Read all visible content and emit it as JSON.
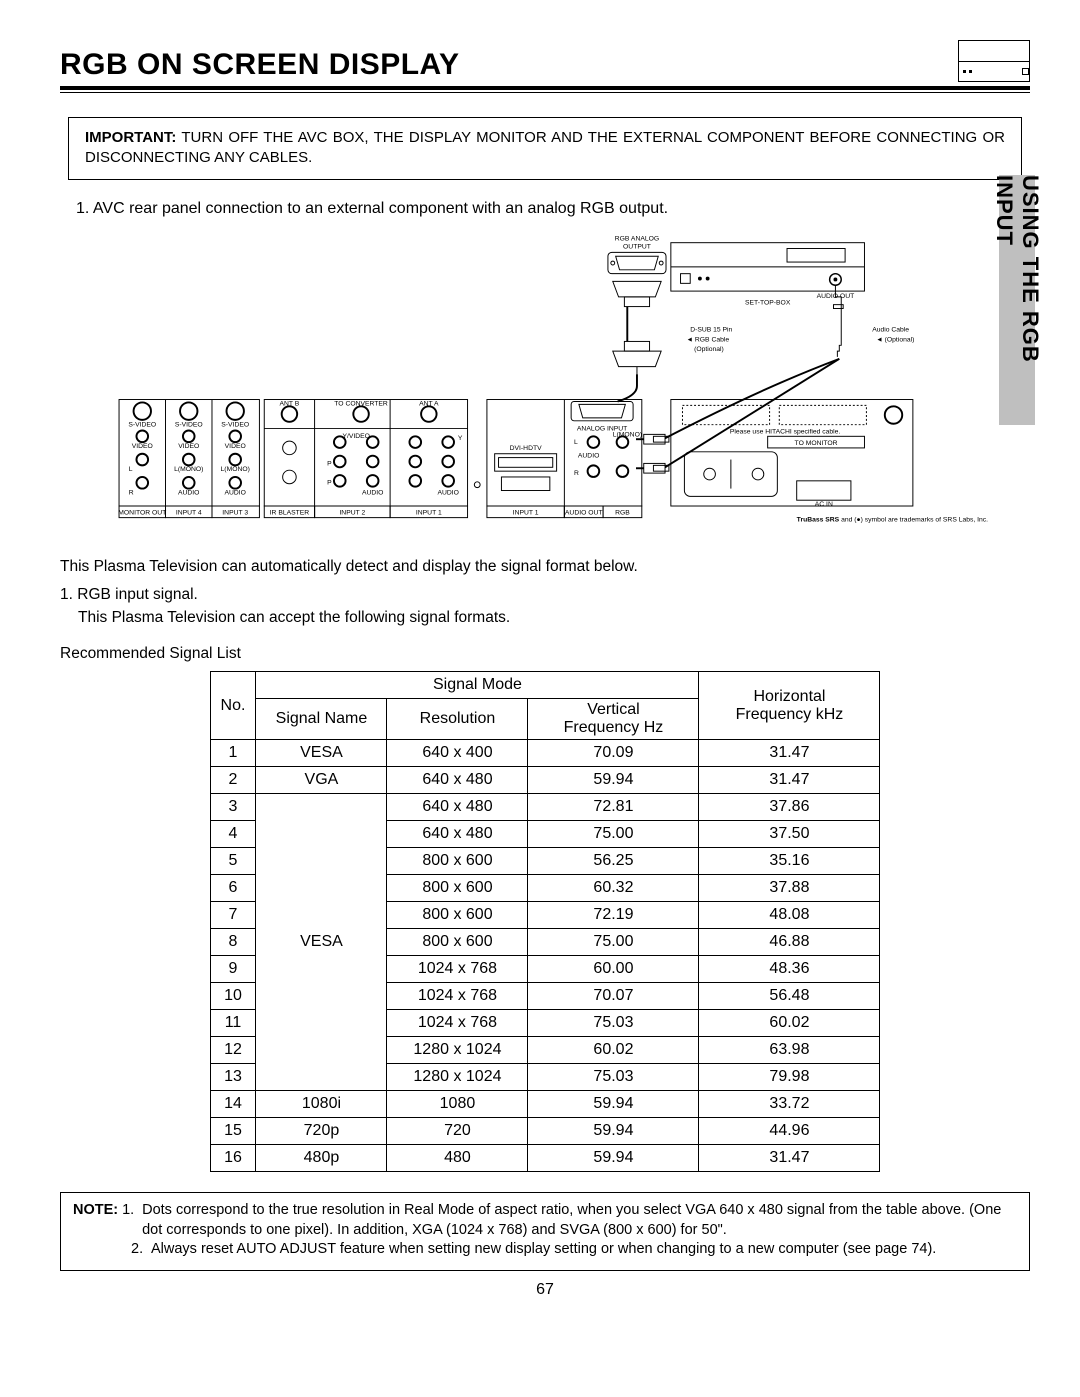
{
  "header": {
    "title": "RGB ON SCREEN DISPLAY"
  },
  "side_tab": {
    "label": "USING THE RGB INPUT",
    "bg_color": "#bfbfbf"
  },
  "important_box": {
    "label": "IMPORTANT:",
    "text": " TURN OFF THE AVC BOX, THE DISPLAY MONITOR AND THE EXTERNAL COMPONENT BEFORE CONNECTING OR DISCONNECTING ANY CABLES."
  },
  "intro_line": {
    "num": "1.",
    "text": "AVC rear panel connection to an external component with an analog RGB output."
  },
  "diagram": {
    "labels": {
      "rgb_analog_output": "RGB ANALOG\nOUTPUT",
      "set_top_box": "SET-TOP-BOX",
      "audio_out": "AUDIO OUT",
      "dsub": "D-SUB 15 Pin",
      "rgb_cable": "RGB Cable",
      "optional": "(Optional)",
      "audio_cable": "Audio Cable",
      "audio_optional": "(Optional)",
      "to_monitor": "TO MONITOR",
      "please_use": "Please use HITACHI specified cable.",
      "ac_in": "AC IN",
      "trubass": "TruBass SRS and (●) symbol are trademarks of SRS Labs, Inc.",
      "analog_input": "ANALOG INPUT",
      "dvi_hdtv": "DVI-HDTV",
      "audio": "AUDIO",
      "l": "L",
      "r": "R",
      "lmono": "L(MONO)",
      "ant_a": "ANT A",
      "ant_b": "ANT B",
      "to_converter": "TO CONVERTER",
      "monitor_out": "MONITOR OUT",
      "input4": "INPUT 4",
      "input3": "INPUT 3",
      "input2": "INPUT 2",
      "input1": "INPUT 1",
      "ir_blaster": "IR BLASTER",
      "audio_out2": "AUDIO OUT",
      "rgb": "RGB",
      "svideo": "S-VIDEO",
      "video": "VIDEO",
      "y": "Y",
      "yvideo": "Y/VIDEO",
      "pb": "PB",
      "pr": "PR"
    }
  },
  "after_diagram": {
    "p1": "This Plasma Television can automatically detect and display the signal format below.",
    "p2_num": "1.",
    "p2a": "RGB input signal.",
    "p2b": "This Plasma Television can accept the following signal formats."
  },
  "table": {
    "caption": "Recommended Signal List",
    "headers": {
      "no": "No.",
      "signal_mode": "Signal Mode",
      "signal_name": "Signal Name",
      "resolution": "Resolution",
      "vfreq": "Vertical\nFrequency Hz",
      "hfreq": "Horizontal\nFrequency kHz"
    },
    "rows": [
      {
        "no": "1",
        "name": "VESA",
        "res": "640 x 400",
        "v": "70.09",
        "h": "31.47"
      },
      {
        "no": "2",
        "name": "VGA",
        "res": "640 x 480",
        "v": "59.94",
        "h": "31.47"
      },
      {
        "no": "3",
        "name": "",
        "res": "640 x 480",
        "v": "72.81",
        "h": "37.86"
      },
      {
        "no": "4",
        "name": "",
        "res": "640 x 480",
        "v": "75.00",
        "h": "37.50"
      },
      {
        "no": "5",
        "name": "",
        "res": "800 x 600",
        "v": "56.25",
        "h": "35.16"
      },
      {
        "no": "6",
        "name": "",
        "res": "800 x 600",
        "v": "60.32",
        "h": "37.88"
      },
      {
        "no": "7",
        "name": "VESA",
        "res": "800 x 600",
        "v": "72.19",
        "h": "48.08"
      },
      {
        "no": "8",
        "name": "",
        "res": "800 x 600",
        "v": "75.00",
        "h": "46.88"
      },
      {
        "no": "9",
        "name": "",
        "res": "1024 x 768",
        "v": "60.00",
        "h": "48.36"
      },
      {
        "no": "10",
        "name": "",
        "res": "1024 x 768",
        "v": "70.07",
        "h": "56.48"
      },
      {
        "no": "11",
        "name": "",
        "res": "1024 x 768",
        "v": "75.03",
        "h": "60.02"
      },
      {
        "no": "12",
        "name": "",
        "res": "1280 x 1024",
        "v": "60.02",
        "h": "63.98"
      },
      {
        "no": "13",
        "name": "",
        "res": "1280 x 1024",
        "v": "75.03",
        "h": "79.98"
      },
      {
        "no": "14",
        "name": "1080i",
        "res": "1080",
        "v": "59.94",
        "h": "33.72"
      },
      {
        "no": "15",
        "name": "720p",
        "res": "720",
        "v": "59.94",
        "h": "44.96"
      },
      {
        "no": "16",
        "name": "480p",
        "res": "480",
        "v": "59.94",
        "h": "31.47"
      }
    ],
    "vesa_span_start": 3,
    "vesa_span_len": 11
  },
  "note_box": {
    "label": "NOTE:",
    "items": [
      {
        "num": "1.",
        "text": "Dots correspond to the true resolution in Real Mode of aspect ratio, when you select VGA 640 x 480 signal from the table above.  (One dot corresponds to one pixel).  In addition, XGA (1024 x 768)  and SVGA (800 x 600) for 50\"."
      },
      {
        "num": "2.",
        "text": "Always reset AUTO ADJUST feature when setting new display setting or when changing to a new computer (see page 74)."
      }
    ]
  },
  "page_number": "67"
}
